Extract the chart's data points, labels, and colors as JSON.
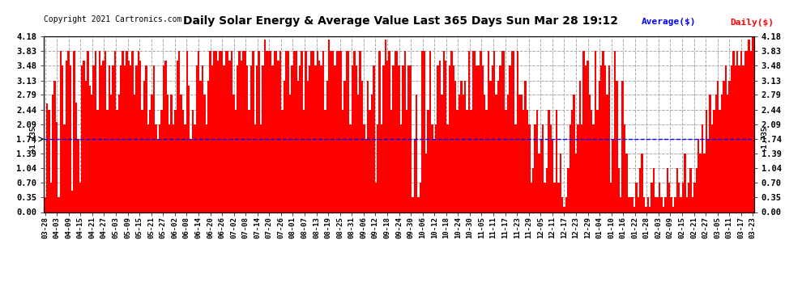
{
  "title": "Daily Solar Energy & Average Value Last 365 Days Sun Mar 28 19:12",
  "copyright": "Copyright 2021 Cartronics.com",
  "average_label": "Average($)",
  "daily_label": "Daily($)",
  "average_value": 1.735,
  "ylim": [
    0.0,
    4.18
  ],
  "yticks": [
    0.0,
    0.35,
    0.7,
    1.04,
    1.39,
    1.74,
    2.09,
    2.44,
    2.79,
    3.13,
    3.48,
    3.83,
    4.18
  ],
  "bar_color": "#ff0000",
  "average_line_color": "#0000ff",
  "background_color": "#ffffff",
  "grid_color": "#aaaaaa",
  "title_color": "#000000",
  "copyright_color": "#000000",
  "average_label_color": "#0000ff",
  "daily_label_color": "#ff0000",
  "x_tick_labels": [
    "03-28",
    "04-03",
    "04-09",
    "04-15",
    "04-21",
    "04-27",
    "05-03",
    "05-09",
    "05-15",
    "05-21",
    "05-27",
    "06-02",
    "06-08",
    "06-14",
    "06-20",
    "06-26",
    "07-02",
    "07-08",
    "07-14",
    "07-20",
    "07-26",
    "08-01",
    "08-07",
    "08-13",
    "08-19",
    "08-25",
    "08-31",
    "09-06",
    "09-12",
    "09-18",
    "09-24",
    "09-30",
    "10-06",
    "10-12",
    "10-18",
    "10-24",
    "10-30",
    "11-05",
    "11-11",
    "11-17",
    "11-23",
    "11-29",
    "12-05",
    "12-11",
    "12-17",
    "12-23",
    "12-29",
    "01-04",
    "01-10",
    "01-16",
    "01-22",
    "01-28",
    "02-03",
    "02-09",
    "02-15",
    "02-21",
    "02-27",
    "03-05",
    "03-11",
    "03-17",
    "03-23"
  ],
  "bar_values": [
    0.35,
    2.58,
    2.44,
    0.7,
    2.79,
    3.13,
    2.15,
    0.35,
    3.83,
    3.48,
    2.09,
    3.6,
    3.83,
    3.48,
    0.5,
    3.83,
    2.6,
    1.74,
    0.7,
    3.48,
    3.6,
    3.13,
    3.83,
    3.0,
    2.79,
    3.48,
    3.83,
    2.44,
    3.83,
    3.48,
    3.6,
    3.83,
    2.44,
    3.48,
    2.79,
    3.48,
    3.83,
    2.44,
    2.79,
    3.48,
    3.83,
    3.48,
    3.83,
    3.6,
    3.48,
    3.83,
    2.79,
    3.48,
    3.83,
    3.6,
    2.44,
    3.13,
    3.48,
    2.09,
    2.44,
    2.79,
    3.48,
    2.09,
    1.74,
    2.09,
    2.44,
    3.48,
    3.6,
    2.79,
    2.09,
    2.79,
    2.09,
    2.44,
    3.6,
    3.83,
    2.79,
    2.44,
    2.09,
    3.83,
    3.0,
    1.74,
    2.44,
    2.09,
    3.48,
    3.83,
    3.13,
    3.48,
    2.79,
    2.09,
    3.13,
    3.83,
    3.48,
    3.83,
    3.83,
    3.6,
    3.83,
    3.83,
    3.48,
    3.83,
    3.83,
    3.6,
    3.83,
    2.79,
    2.44,
    3.48,
    3.83,
    3.6,
    3.83,
    3.83,
    3.48,
    2.44,
    3.48,
    3.83,
    2.09,
    3.48,
    3.83,
    2.09,
    3.48,
    4.1,
    3.83,
    3.83,
    3.83,
    3.48,
    3.83,
    3.83,
    3.6,
    3.83,
    2.44,
    3.13,
    3.83,
    3.83,
    2.79,
    3.48,
    3.83,
    3.83,
    3.13,
    3.48,
    3.83,
    2.44,
    3.83,
    3.13,
    3.48,
    3.83,
    3.83,
    3.48,
    3.83,
    3.6,
    3.48,
    3.83,
    2.44,
    3.13,
    4.1,
    3.83,
    3.83,
    3.48,
    3.83,
    3.83,
    3.83,
    2.44,
    3.13,
    3.83,
    3.83,
    2.09,
    3.48,
    3.83,
    3.48,
    2.79,
    3.83,
    3.13,
    2.09,
    1.74,
    3.13,
    2.44,
    2.79,
    3.48,
    0.7,
    2.09,
    3.83,
    2.09,
    3.48,
    4.1,
    3.6,
    3.83,
    2.44,
    3.48,
    3.83,
    3.83,
    3.48,
    2.09,
    3.48,
    3.83,
    2.44,
    3.48,
    3.48,
    0.35,
    1.74,
    2.79,
    0.35,
    0.7,
    3.83,
    3.83,
    1.39,
    2.44,
    3.83,
    2.09,
    1.74,
    2.09,
    3.48,
    3.6,
    2.79,
    3.83,
    3.6,
    2.09,
    3.48,
    3.83,
    3.48,
    3.13,
    2.44,
    2.79,
    3.13,
    2.79,
    3.13,
    2.44,
    3.83,
    2.44,
    3.83,
    3.83,
    3.48,
    3.48,
    3.83,
    3.48,
    2.79,
    2.44,
    3.83,
    3.13,
    3.48,
    3.83,
    2.79,
    3.13,
    3.48,
    3.83,
    3.83,
    2.44,
    2.79,
    3.48,
    3.83,
    3.83,
    2.09,
    3.83,
    2.79,
    2.79,
    2.44,
    3.13,
    2.44,
    2.09,
    0.7,
    1.04,
    2.09,
    2.44,
    1.39,
    1.74,
    2.09,
    0.7,
    1.04,
    2.44,
    2.09,
    1.74,
    0.7,
    2.44,
    0.7,
    1.39,
    0.35,
    0.12,
    0.35,
    1.04,
    2.09,
    2.44,
    2.79,
    1.39,
    2.09,
    3.13,
    2.09,
    3.83,
    3.48,
    3.6,
    2.79,
    2.44,
    2.09,
    3.83,
    2.44,
    3.13,
    3.48,
    3.83,
    3.48,
    2.79,
    3.48,
    0.7,
    1.74,
    3.83,
    3.13,
    1.04,
    0.35,
    3.13,
    2.09,
    1.39,
    0.35,
    0.35,
    0.35,
    0.12,
    0.7,
    0.35,
    1.04,
    1.39,
    0.35,
    0.12,
    0.35,
    0.12,
    0.7,
    1.04,
    0.35,
    0.35,
    0.7,
    0.35,
    0.12,
    0.35,
    1.04,
    0.7,
    0.35,
    0.12,
    0.35,
    1.04,
    0.7,
    0.35,
    0.7,
    1.39,
    0.35,
    0.7,
    1.04,
    0.35,
    0.7,
    1.04,
    1.74,
    1.39,
    2.09,
    1.39,
    2.44,
    1.74,
    2.79,
    2.09,
    2.44,
    2.79,
    3.13,
    2.44,
    2.79,
    3.13,
    3.48,
    2.79,
    3.13,
    3.48,
    3.83,
    3.48,
    3.83,
    3.48,
    3.83,
    3.48,
    3.83,
    3.83,
    4.1,
    3.83,
    4.18
  ]
}
